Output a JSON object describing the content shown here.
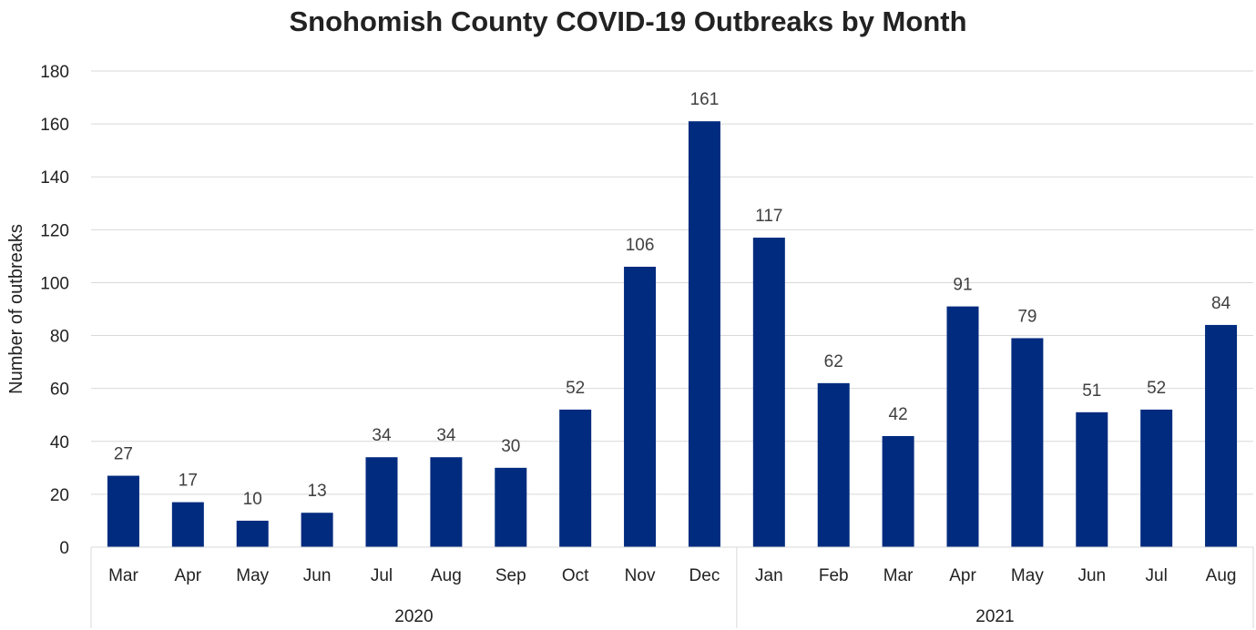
{
  "chart_data": {
    "type": "bar",
    "title": "Snohomish County COVID-19 Outbreaks by Month",
    "xlabel": "",
    "ylabel": "Number of outbreaks",
    "ylim": [
      0,
      180
    ],
    "yticks": [
      "0",
      "20",
      "40",
      "60",
      "80",
      "100",
      "120",
      "140",
      "160",
      "180"
    ],
    "grid": true,
    "legend": "none",
    "bar_color": "#002B7F",
    "categories": [
      "Mar",
      "Apr",
      "May",
      "Jun",
      "Jul",
      "Aug",
      "Sep",
      "Oct",
      "Nov",
      "Dec",
      "Jan",
      "Feb",
      "Mar",
      "Apr",
      "May",
      "Jun",
      "Jul",
      "Aug"
    ],
    "values": [
      27,
      17,
      10,
      13,
      34,
      34,
      30,
      52,
      106,
      161,
      117,
      62,
      42,
      91,
      79,
      51,
      52,
      84
    ],
    "groups": [
      {
        "label": "2020",
        "count": 10
      },
      {
        "label": "2021",
        "count": 8
      }
    ]
  }
}
